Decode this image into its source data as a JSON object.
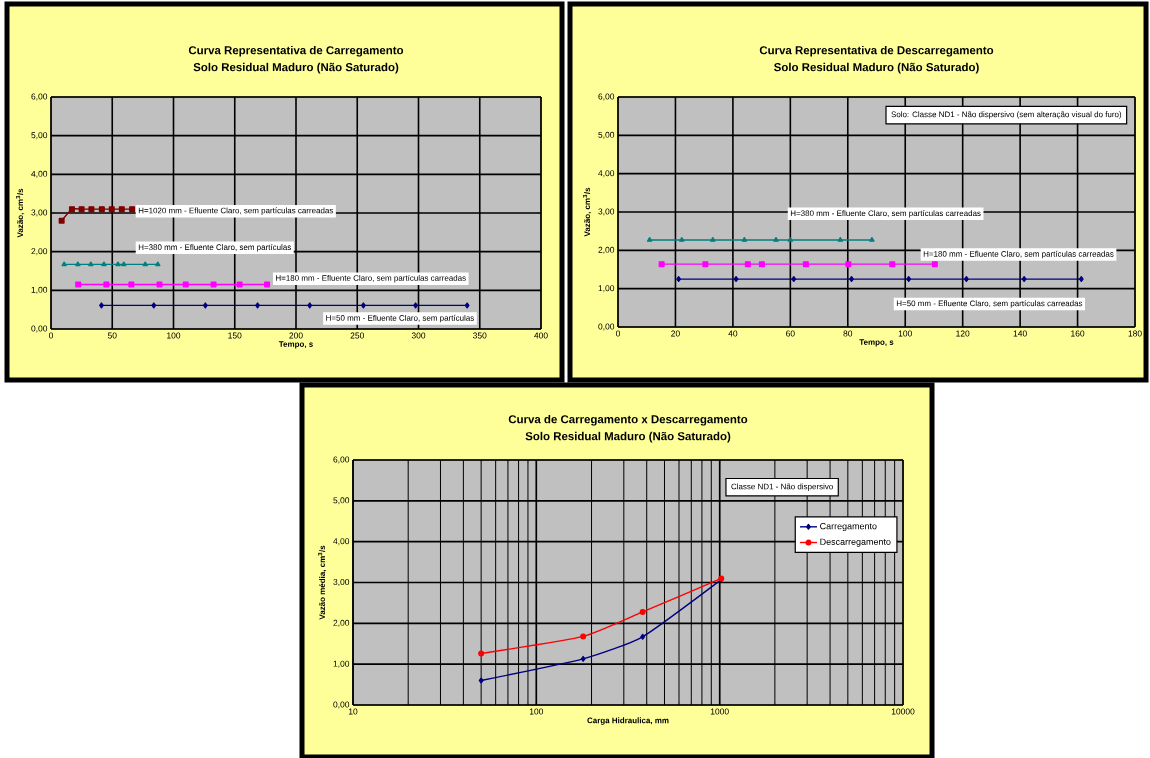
{
  "chart_data": [
    {
      "type": "line",
      "title": "Curva Representativa de Carregamento",
      "subtitle": "Solo Residual Maduro (Não Saturado)",
      "xlabel": "Tempo, s",
      "ylabel": "Vazão, cm$^{3}$/s",
      "xlim": [
        0,
        400
      ],
      "ylim": [
        0,
        6
      ],
      "xticks": [
        0,
        50,
        100,
        150,
        200,
        250,
        300,
        350,
        400
      ],
      "yticks": [
        {
          "value": 0,
          "label": "0,00"
        },
        {
          "value": 1,
          "label": "1,00"
        },
        {
          "value": 2,
          "label": "2,00"
        },
        {
          "value": 3,
          "label": "3,00"
        },
        {
          "value": 4,
          "label": "4,00"
        },
        {
          "value": 5,
          "label": "5,00"
        },
        {
          "value": 6,
          "label": "6,00"
        }
      ],
      "grid": true,
      "legend": false,
      "series": [
        {
          "name": "H=1020 mm - Efluente Claro, sem partículas carreadas",
          "color": "#800000",
          "marker": "square",
          "x": [
            8.7,
            17.1,
            25,
            33,
            41.5,
            49.6,
            57.8,
            66.2
          ],
          "values": [
            2.8,
            3.1,
            3.1,
            3.1,
            3.1,
            3.1,
            3.1,
            3.1
          ]
        },
        {
          "name": "H=380 mm - Efluente Claro, sem partículas",
          "color": "#008080",
          "marker": "triangle",
          "x": [
            10.7,
            21.9,
            32.5,
            43.2,
            54.7,
            59.4,
            76.9,
            87.2
          ],
          "values": [
            1.67,
            1.67,
            1.67,
            1.67,
            1.67,
            1.67,
            1.67,
            1.67
          ]
        },
        {
          "name": "H=180 mm - Efluente Claro, sem partículas carreadas",
          "color": "#ff00ff",
          "marker": "square",
          "x": [
            22.2,
            45.2,
            65.6,
            88.6,
            110,
            132.7,
            154,
            176.4
          ],
          "values": [
            1.15,
            1.15,
            1.15,
            1.15,
            1.15,
            1.15,
            1.15,
            1.15
          ]
        },
        {
          "name": "H=50 mm - Efluente Claro, sem partículas",
          "color": "#000080",
          "marker": "diamond",
          "x": [
            41.2,
            83.9,
            126,
            168.6,
            211.2,
            255,
            297.6,
            339.7
          ],
          "values": [
            0.61,
            0.61,
            0.61,
            0.61,
            0.61,
            0.61,
            0.61,
            0.61
          ]
        }
      ]
    },
    {
      "type": "line",
      "title": "Curva Representativa de Descarregamento",
      "subtitle": "Solo Residual Maduro (Não Saturado)",
      "xlabel": "Tempo, s",
      "ylabel": "Vazão,  cm$^{3}$/s",
      "xlim": [
        0,
        180
      ],
      "ylim": [
        0,
        6
      ],
      "xticks": [
        0,
        20,
        40,
        60,
        80,
        100,
        120,
        140,
        160,
        180
      ],
      "yticks": [
        {
          "value": 0,
          "label": "0,00"
        },
        {
          "value": 1,
          "label": "1,00"
        },
        {
          "value": 2,
          "label": "2,00"
        },
        {
          "value": 3,
          "label": "3,00"
        },
        {
          "value": 4,
          "label": "4,00"
        },
        {
          "value": 5,
          "label": "5,00"
        },
        {
          "value": 6,
          "label": "6,00"
        }
      ],
      "grid": true,
      "legend": false,
      "annotations": [
        "Solo: Classe ND1 - Não dispersivo (sem alteração visual do furo)"
      ],
      "series": [
        {
          "name": "H=380 mm - Efluente Claro, sem partículas carreadas",
          "color": "#008080",
          "marker": "triangle",
          "x": [
            11,
            22.2,
            33,
            44,
            55,
            60,
            77.4,
            88.4
          ],
          "values": [
            2.27,
            2.27,
            2.27,
            2.27,
            2.27,
            2.27,
            2.27,
            2.27
          ]
        },
        {
          "name": "H=180 mm - Efluente Claro, sem partículas carreadas",
          "color": "#ff00ff",
          "marker": "square",
          "x": [
            15.2,
            30.4,
            45.2,
            50.1,
            65.4,
            80.2,
            95.5,
            110.3
          ],
          "values": [
            1.64,
            1.64,
            1.64,
            1.64,
            1.64,
            1.64,
            1.64,
            1.64
          ]
        },
        {
          "name": "H=50 mm - Efluente Claro, sem partículas carreadas",
          "color": "#000080",
          "marker": "diamond",
          "x": [
            21.1,
            41.1,
            61.2,
            81.3,
            101.2,
            121.3,
            141.4,
            161.3
          ],
          "values": [
            1.25,
            1.25,
            1.25,
            1.25,
            1.25,
            1.25,
            1.25,
            1.25
          ]
        }
      ]
    },
    {
      "type": "line",
      "title": "Curva de Carregamento x Descarregamento",
      "subtitle": "Solo Residual Maduro (Não Saturado)",
      "xlabel": "Carga Hidraulica, mm",
      "ylabel": "Vazão média, cm$^{3}$/s",
      "log": "x",
      "xlim": [
        10,
        10000
      ],
      "ylim": [
        0,
        6
      ],
      "xticks": [
        10,
        100,
        1000,
        10000
      ],
      "yticks": [
        {
          "value": 0,
          "label": "0,00"
        },
        {
          "value": 1,
          "label": "1,00"
        },
        {
          "value": 2,
          "label": "2,00"
        },
        {
          "value": 3,
          "label": "3,00"
        },
        {
          "value": 4,
          "label": "4,00"
        },
        {
          "value": 5,
          "label": "5,00"
        },
        {
          "value": 6,
          "label": "6,00"
        }
      ],
      "grid": true,
      "legend": "top right",
      "annotations": [
        "Classe ND1 - Não dispersivo"
      ],
      "series": [
        {
          "name": "Carregamento",
          "color": "#000080",
          "marker": "diamond",
          "x": [
            50,
            180,
            380,
            1020
          ],
          "values": [
            0.6,
            1.13,
            1.67,
            3.07
          ]
        },
        {
          "name": "Descarregamento",
          "color": "#ff0000",
          "marker": "circle",
          "x": [
            50,
            180,
            380,
            1020
          ],
          "values": [
            1.26,
            1.68,
            2.28,
            3.1
          ]
        }
      ]
    }
  ]
}
